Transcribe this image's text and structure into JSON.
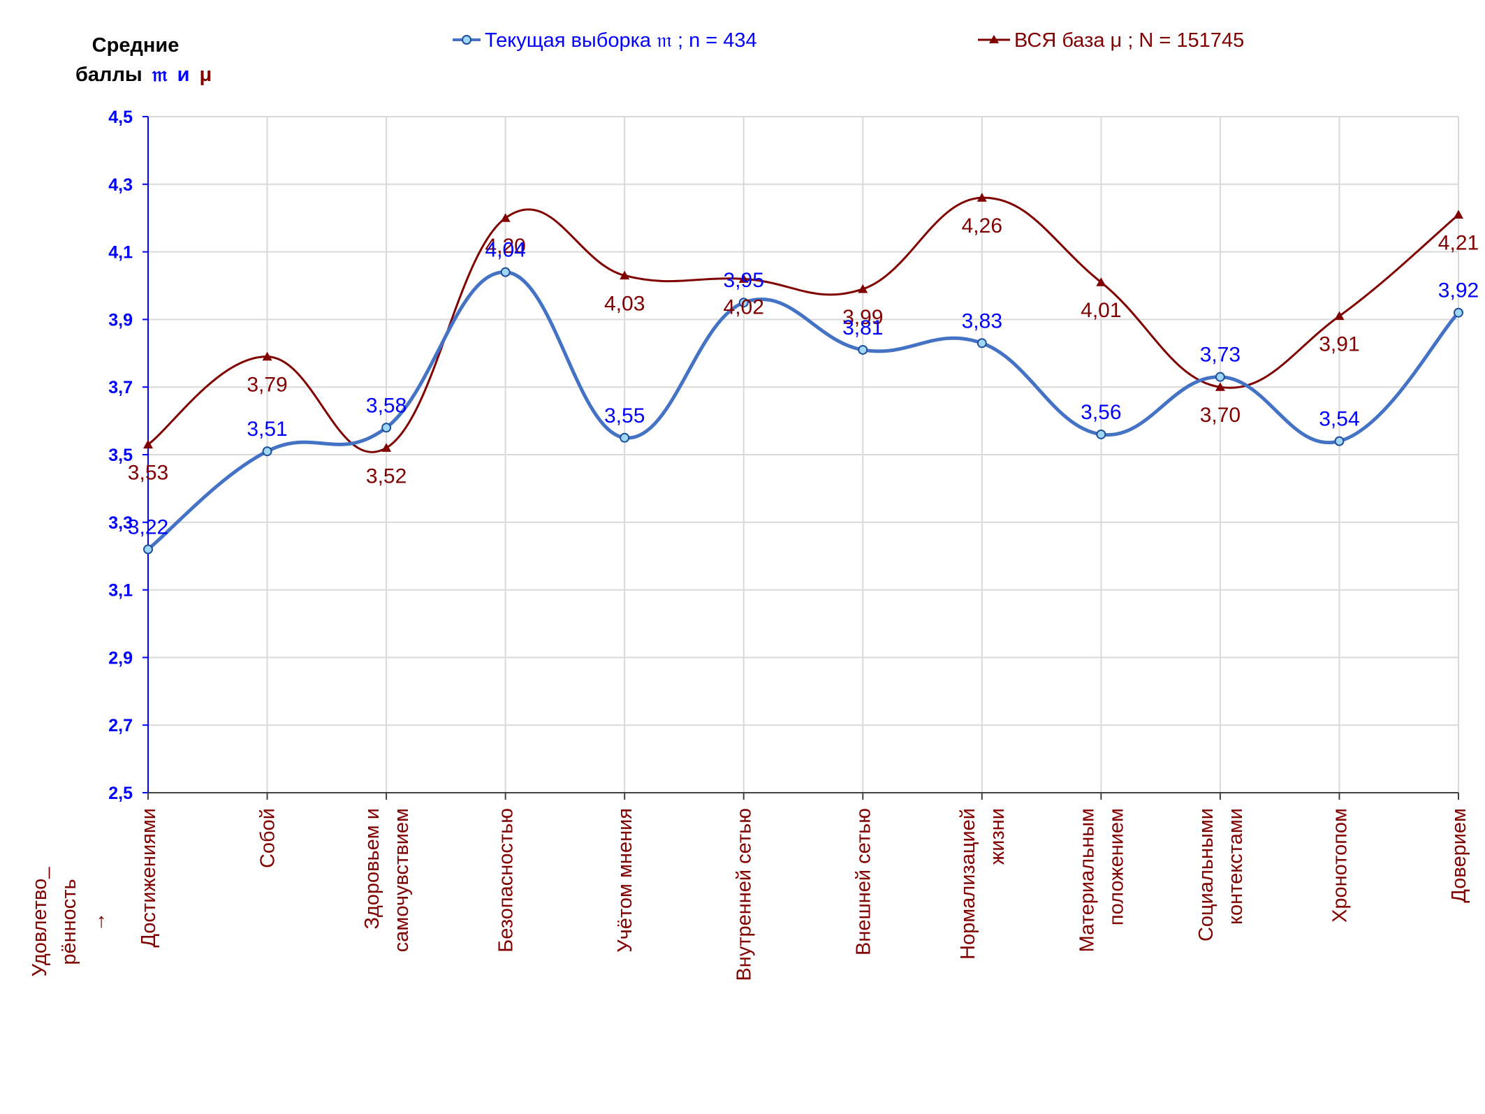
{
  "chart_data": {
    "type": "line",
    "ylabel_line1": "Средние",
    "ylabel_line2_prefix": "баллы",
    "ylabel_sym_current": "𝔪",
    "ylabel_and": "и",
    "ylabel_sym_base": "μ",
    "xlabel_lines": [
      "Удовлетво_",
      "рённость",
      "→"
    ],
    "ylim": [
      2.5,
      4.5
    ],
    "yticks": [
      "2,5",
      "2,7",
      "2,9",
      "3,1",
      "3,3",
      "3,5",
      "3,7",
      "3,9",
      "4,1",
      "4,3",
      "4,5"
    ],
    "ytick_values": [
      2.5,
      2.7,
      2.9,
      3.1,
      3.3,
      3.5,
      3.7,
      3.9,
      4.1,
      4.3,
      4.5
    ],
    "grid": true,
    "legend_position": "top",
    "categories": [
      [
        "Достижениями"
      ],
      [
        "Собой"
      ],
      [
        "Здоровьем и",
        "самочувствием"
      ],
      [
        "Безопасностью"
      ],
      [
        "Учётом мнения"
      ],
      [
        "Внутренней сетью"
      ],
      [
        "Внешней сетью"
      ],
      [
        "Нормализацией",
        "жизни"
      ],
      [
        "Материальным",
        "положением"
      ],
      [
        "Социальными",
        "контекстами"
      ],
      [
        "Хронотопом"
      ],
      [
        "Доверием"
      ]
    ],
    "series": [
      {
        "name": "Текущая выборка 𝔪 ; n = 434",
        "color": "#4472c4",
        "label_color": "#0000ff",
        "marker": "circle",
        "values": [
          3.22,
          3.51,
          3.58,
          4.04,
          3.55,
          3.95,
          3.81,
          3.83,
          3.56,
          3.73,
          3.54,
          3.92
        ],
        "labels": [
          "3,22",
          "3,51",
          "3,58",
          "4,04",
          "3,55",
          "3,95",
          "3,81",
          "3,83",
          "3,56",
          "3,73",
          "3,54",
          "3,92"
        ]
      },
      {
        "name": "ВСЯ база μ ; N = 151745",
        "color": "#800000",
        "label_color": "#800000",
        "marker": "triangle",
        "values": [
          3.53,
          3.79,
          3.52,
          4.2,
          4.03,
          4.02,
          3.99,
          4.26,
          4.01,
          3.7,
          3.91,
          4.21
        ],
        "labels": [
          "3,53",
          "3,79",
          "3,52",
          "4,20",
          "4,03",
          "4,02",
          "3,99",
          "4,26",
          "4,01",
          "3,70",
          "3,91",
          "4,21"
        ]
      }
    ]
  }
}
